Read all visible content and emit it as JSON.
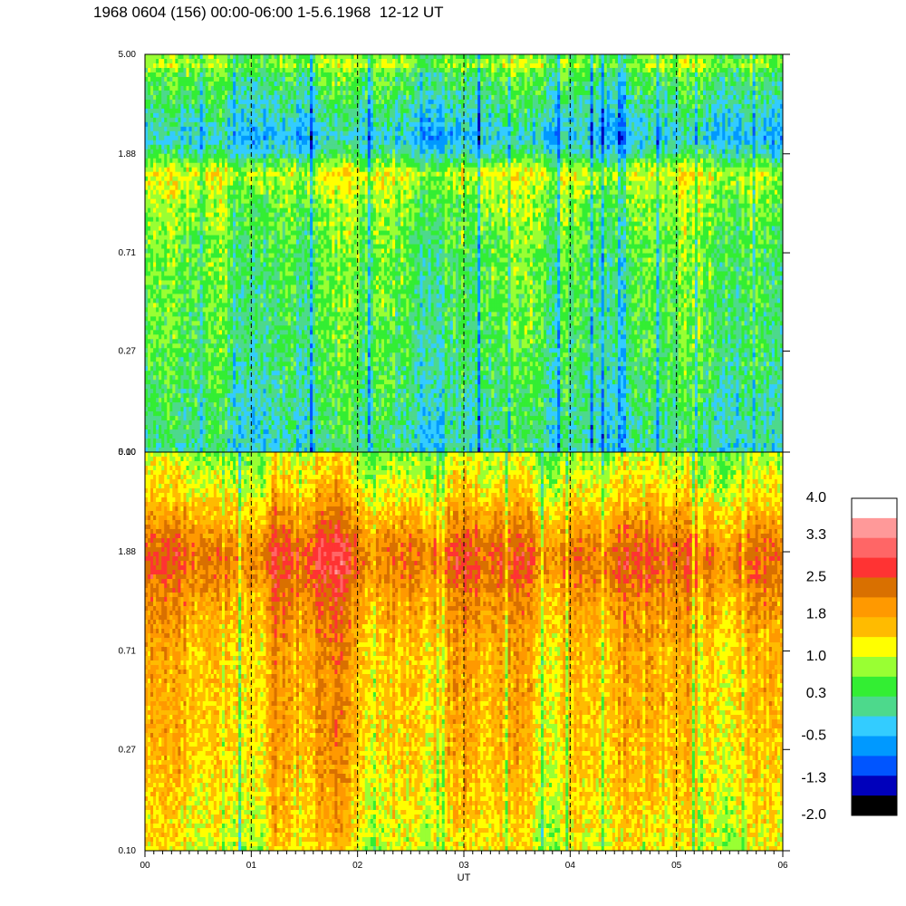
{
  "title": "1968 0604 (156) 00:00-06:00 1-5.6.1968  12-12 UT",
  "chart_data": [
    {
      "type": "heatmap",
      "panel": "top",
      "y_scale": "log",
      "y_tick_labels": [
        "5.00",
        "1.88",
        "0.71",
        "0.27",
        "0.10"
      ],
      "ylim": [
        0.1,
        5.0
      ],
      "x_range_hours": [
        0,
        6
      ],
      "hour_markers": [
        1,
        2,
        3,
        4,
        5
      ],
      "band_profile": [
        {
          "y": 5.0,
          "value": 0.45
        },
        {
          "y": 4.5,
          "value": 0.85
        },
        {
          "y": 4.2,
          "value": 0.4
        },
        {
          "y": 3.0,
          "value": 0.05
        },
        {
          "y": 2.2,
          "value": -0.35
        },
        {
          "y": 1.88,
          "value": 0.05
        },
        {
          "y": 1.55,
          "value": 1.05
        },
        {
          "y": 1.2,
          "value": 0.7
        },
        {
          "y": 0.71,
          "value": 0.45
        },
        {
          "y": 0.45,
          "value": 0.4
        },
        {
          "y": 0.27,
          "value": 0.3
        },
        {
          "y": 0.15,
          "value": 0.1
        },
        {
          "y": 0.1,
          "value": -0.05
        }
      ]
    },
    {
      "type": "heatmap",
      "panel": "bottom",
      "y_scale": "log",
      "y_tick_labels": [
        "5.00",
        "1.88",
        "0.71",
        "0.27",
        "0.10"
      ],
      "ylim": [
        0.1,
        5.0
      ],
      "x_range_hours": [
        0,
        6
      ],
      "x_tick_labels": [
        "00",
        "01",
        "02",
        "03",
        "04",
        "05",
        "06"
      ],
      "xlabel": "UT",
      "hour_markers": [
        1,
        2,
        3,
        4,
        5
      ],
      "band_profile": [
        {
          "y": 5.0,
          "value": 0.85
        },
        {
          "y": 3.5,
          "value": 1.25
        },
        {
          "y": 2.5,
          "value": 1.85
        },
        {
          "y": 1.88,
          "value": 2.35
        },
        {
          "y": 1.55,
          "value": 2.3
        },
        {
          "y": 1.2,
          "value": 1.95
        },
        {
          "y": 0.71,
          "value": 1.65
        },
        {
          "y": 0.45,
          "value": 1.6
        },
        {
          "y": 0.27,
          "value": 1.55
        },
        {
          "y": 0.15,
          "value": 1.35
        },
        {
          "y": 0.1,
          "value": 1.15
        }
      ]
    }
  ],
  "colorbar": {
    "tick_labels": [
      "4.0",
      "3.3",
      "2.5",
      "1.8",
      "1.0",
      "0.3",
      "-0.5",
      "-1.3",
      "-2.0"
    ],
    "colors": [
      "#ffffff",
      "#ff9999",
      "#ff6666",
      "#ff3333",
      "#d97000",
      "#ff9900",
      "#ffbb00",
      "#ffff00",
      "#99ff33",
      "#33ee33",
      "#4dd98c",
      "#33ccff",
      "#0099ff",
      "#0055ff",
      "#0000bb",
      "#000000"
    ]
  }
}
